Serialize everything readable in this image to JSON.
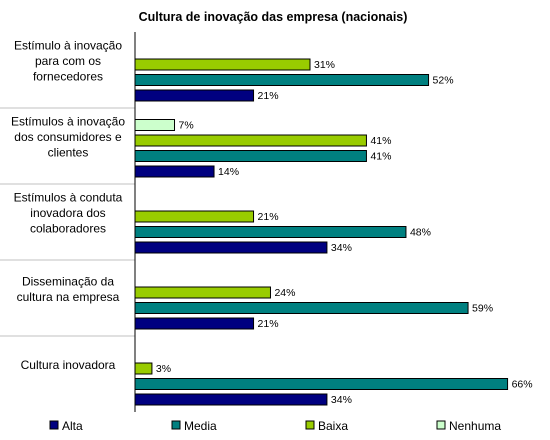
{
  "chart_data": {
    "type": "bar",
    "orientation": "horizontal",
    "title": "Cultura de inovação das empresa (nacionais)",
    "categories": [
      [
        "Estímulo à inovação",
        "para com os",
        "fornecedores"
      ],
      [
        "Estímulos à inovação",
        "dos consumidores e",
        "clientes"
      ],
      [
        "Estímulos à conduta",
        "inovadora dos",
        "colaboradores"
      ],
      [
        "Disseminação da",
        "cultura na empresa"
      ],
      [
        "Cultura inovadora"
      ]
    ],
    "series": [
      {
        "name": "Nenhuma",
        "color": "#ccffcc",
        "values": [
          null,
          7,
          null,
          null,
          null
        ]
      },
      {
        "name": "Baixa",
        "color": "#99cc00",
        "values": [
          31,
          41,
          21,
          24,
          3
        ]
      },
      {
        "name": "Media",
        "color": "#008080",
        "values": [
          52,
          41,
          48,
          59,
          66
        ]
      },
      {
        "name": "Alta",
        "color": "#000080",
        "values": [
          21,
          14,
          34,
          21,
          34
        ]
      }
    ],
    "value_suffix": "%",
    "xlim": [
      0,
      72
    ],
    "grid": false,
    "legend": {
      "position": "bottom",
      "order": [
        "Alta",
        "Media",
        "Baixa",
        "Nenhuma"
      ]
    }
  }
}
